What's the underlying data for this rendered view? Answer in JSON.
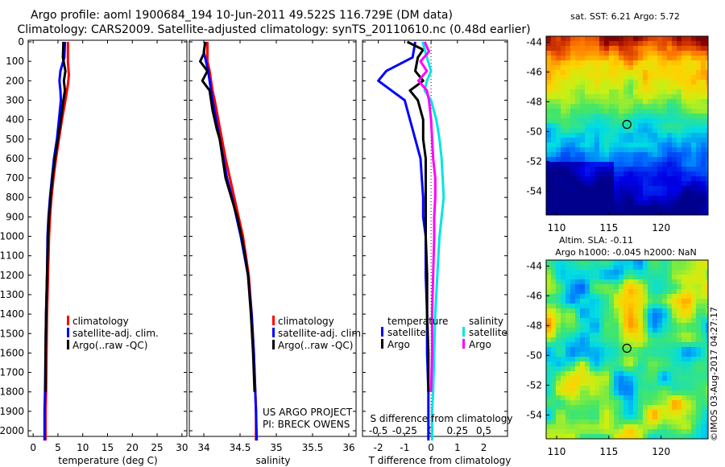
{
  "header": {
    "title_line1": "Argo profile: aoml 1900684_194 10-Jun-2011 49.522S 116.729E (DM data)",
    "title_line2": "Climatology: CARS2009. Satellite-adjusted climatology: synTS_20110610.nc (0.48d earlier)"
  },
  "colors": {
    "climatology": "#ff0000",
    "satellite": "#0000ff",
    "argo": "#000000",
    "salinity_satellite": "#00e5e5",
    "salinity_argo": "#ff00ff"
  },
  "chart_data": [
    {
      "id": "temperature",
      "type": "line",
      "xlabel": "temperature (deg C)",
      "ylim": [
        2050,
        0
      ],
      "xlim": [
        -1,
        31
      ],
      "xticks": [
        0,
        5,
        10,
        15,
        20,
        25,
        30
      ],
      "xtick_labels": [
        "0",
        "5",
        "10",
        "15",
        "20",
        "25",
        "30"
      ],
      "yticks": [
        0,
        100,
        200,
        300,
        400,
        500,
        600,
        700,
        800,
        900,
        1000,
        1100,
        1200,
        1300,
        1400,
        1500,
        1600,
        1700,
        1800,
        1900,
        2000
      ],
      "legend": [
        "climatology",
        "satellite-adj. clim.",
        "Argo(..raw -QC)"
      ],
      "series": [
        {
          "name": "climatology",
          "color": "#ff0000",
          "points": [
            [
              7.0,
              0
            ],
            [
              7.0,
              100
            ],
            [
              7.2,
              170
            ],
            [
              7.0,
              220
            ],
            [
              6.5,
              300
            ],
            [
              5.8,
              400
            ],
            [
              5.2,
              500
            ],
            [
              4.6,
              600
            ],
            [
              4.1,
              700
            ],
            [
              3.7,
              800
            ],
            [
              3.4,
              900
            ],
            [
              3.2,
              1000
            ],
            [
              3.0,
              1200
            ],
            [
              2.8,
              1400
            ],
            [
              2.7,
              1600
            ],
            [
              2.6,
              1800
            ],
            [
              2.5,
              1900
            ],
            [
              2.5,
              2050
            ]
          ]
        },
        {
          "name": "satellite-adj. clim.",
          "color": "#0000ff",
          "points": [
            [
              6.4,
              0
            ],
            [
              6.3,
              80
            ],
            [
              5.5,
              150
            ],
            [
              5.3,
              200
            ],
            [
              5.5,
              250
            ],
            [
              5.6,
              300
            ],
            [
              5.2,
              400
            ],
            [
              4.8,
              500
            ],
            [
              4.2,
              600
            ],
            [
              3.8,
              700
            ],
            [
              3.4,
              800
            ],
            [
              3.1,
              900
            ],
            [
              2.9,
              1000
            ],
            [
              2.8,
              1200
            ],
            [
              2.6,
              1400
            ],
            [
              2.5,
              1600
            ],
            [
              2.4,
              1800
            ],
            [
              2.3,
              1900
            ],
            [
              2.3,
              2050
            ]
          ]
        },
        {
          "name": "Argo(..raw -QC)",
          "color": "#000000",
          "points": [
            [
              6.1,
              0
            ],
            [
              6.0,
              80
            ],
            [
              6.5,
              150
            ],
            [
              6.2,
              200
            ],
            [
              6.4,
              250
            ],
            [
              6.1,
              300
            ],
            [
              5.6,
              400
            ],
            [
              5.0,
              500
            ],
            [
              4.4,
              600
            ],
            [
              3.9,
              700
            ],
            [
              3.5,
              800
            ],
            [
              3.2,
              900
            ],
            [
              3.0,
              1000
            ],
            [
              2.8,
              1200
            ],
            [
              2.6,
              1400
            ],
            [
              2.5,
              1600
            ],
            [
              2.5,
              1800
            ]
          ]
        }
      ]
    },
    {
      "id": "salinity",
      "type": "line",
      "xlabel": "salinity",
      "ylim": [
        2050,
        0
      ],
      "xlim": [
        33.8,
        36.1
      ],
      "xticks": [
        34,
        34.5,
        35,
        35.5,
        36
      ],
      "xtick_labels": [
        "34",
        "34.5",
        "35",
        "35.5",
        "36"
      ],
      "legend": [
        "climatology",
        "satellite-adj. clim.",
        "Argo(..raw -QC)"
      ],
      "series": [
        {
          "name": "climatology",
          "color": "#ff0000",
          "points": [
            [
              34.05,
              0
            ],
            [
              34.05,
              100
            ],
            [
              34.08,
              150
            ],
            [
              34.1,
              200
            ],
            [
              34.12,
              250
            ],
            [
              34.15,
              300
            ],
            [
              34.2,
              400
            ],
            [
              34.25,
              500
            ],
            [
              34.3,
              600
            ],
            [
              34.36,
              700
            ],
            [
              34.42,
              800
            ],
            [
              34.48,
              900
            ],
            [
              34.54,
              1000
            ],
            [
              34.58,
              1100
            ],
            [
              34.62,
              1200
            ],
            [
              34.66,
              1400
            ],
            [
              34.69,
              1600
            ],
            [
              34.71,
              1800
            ],
            [
              34.72,
              1900
            ],
            [
              34.72,
              2050
            ]
          ]
        },
        {
          "name": "satellite-adj. clim.",
          "color": "#0000ff",
          "points": [
            [
              34.02,
              0
            ],
            [
              34.0,
              50
            ],
            [
              34.03,
              100
            ],
            [
              34.06,
              150
            ],
            [
              34.08,
              200
            ],
            [
              34.12,
              300
            ],
            [
              34.17,
              400
            ],
            [
              34.22,
              500
            ],
            [
              34.27,
              600
            ],
            [
              34.32,
              700
            ],
            [
              34.39,
              800
            ],
            [
              34.45,
              900
            ],
            [
              34.51,
              1000
            ],
            [
              34.56,
              1100
            ],
            [
              34.61,
              1200
            ],
            [
              34.66,
              1400
            ],
            [
              34.69,
              1600
            ],
            [
              34.71,
              1800
            ],
            [
              34.72,
              1900
            ],
            [
              34.73,
              2050
            ]
          ]
        },
        {
          "name": "Argo(..raw -QC)",
          "color": "#000000",
          "points": [
            [
              34.02,
              0
            ],
            [
              34.0,
              60
            ],
            [
              33.95,
              100
            ],
            [
              34.05,
              150
            ],
            [
              33.98,
              200
            ],
            [
              34.08,
              250
            ],
            [
              34.1,
              300
            ],
            [
              34.12,
              350
            ],
            [
              34.15,
              400
            ],
            [
              34.18,
              450
            ],
            [
              34.22,
              500
            ],
            [
              34.24,
              550
            ],
            [
              34.26,
              600
            ],
            [
              34.3,
              700
            ],
            [
              34.38,
              800
            ],
            [
              34.46,
              900
            ],
            [
              34.52,
              1000
            ],
            [
              34.57,
              1100
            ],
            [
              34.61,
              1200
            ],
            [
              34.65,
              1400
            ],
            [
              34.68,
              1600
            ],
            [
              34.7,
              1800
            ]
          ]
        }
      ],
      "annotations": [
        "US ARGO PROJECT",
        "PI: BRECK OWENS"
      ]
    },
    {
      "id": "difference",
      "type": "line",
      "xlabel_top": "S difference from climatology",
      "xlabel": "T difference from climatology",
      "ylim": [
        2050,
        0
      ],
      "xlim": [
        -2.6,
        2.9
      ],
      "xticks": [
        -2,
        -1,
        0,
        1,
        2
      ],
      "xtick_labels": [
        "-2",
        "-1",
        "0",
        "1",
        "2"
      ],
      "xticks_top": [
        -0.5,
        -0.25,
        0,
        0.25,
        0.5
      ],
      "xtick_top_labels": [
        "-0.5",
        "-0.25",
        "0",
        "0.25",
        "0.5"
      ],
      "legend_left_title": "temperature",
      "legend_right_title": "salinity",
      "legend_left": [
        "satellite",
        "Argo"
      ],
      "legend_right": [
        "satellite",
        "Argo"
      ],
      "series": [
        {
          "name": "temperature satellite",
          "color": "#0000ff",
          "points": [
            [
              -0.6,
              0
            ],
            [
              -0.7,
              80
            ],
            [
              -1.7,
              150
            ],
            [
              -2.0,
              200
            ],
            [
              -1.5,
              250
            ],
            [
              -1.0,
              300
            ],
            [
              -0.8,
              400
            ],
            [
              -0.6,
              500
            ],
            [
              -0.4,
              600
            ],
            [
              -0.35,
              700
            ],
            [
              -0.3,
              800
            ],
            [
              -0.3,
              900
            ],
            [
              -0.2,
              1000
            ],
            [
              -0.2,
              1200
            ],
            [
              -0.15,
              1400
            ],
            [
              -0.15,
              1600
            ],
            [
              -0.1,
              1800
            ],
            [
              -0.1,
              2050
            ]
          ]
        },
        {
          "name": "temperature Argo",
          "color": "#000000",
          "points": [
            [
              -0.9,
              0
            ],
            [
              -0.3,
              40
            ],
            [
              -0.5,
              80
            ],
            [
              -0.6,
              150
            ],
            [
              -0.3,
              200
            ],
            [
              -0.8,
              250
            ],
            [
              -0.5,
              300
            ],
            [
              -0.3,
              400
            ],
            [
              -0.3,
              500
            ],
            [
              -0.2,
              600
            ],
            [
              -0.2,
              800
            ],
            [
              -0.2,
              1000
            ],
            [
              -0.15,
              1200
            ],
            [
              -0.15,
              1400
            ],
            [
              -0.1,
              1600
            ],
            [
              -0.1,
              1800
            ]
          ]
        },
        {
          "name": "salinity satellite",
          "color": "#00e5e5",
          "points": [
            [
              -0.08,
              0
            ],
            [
              -0.04,
              80
            ],
            [
              0.0,
              150
            ],
            [
              -0.04,
              200
            ],
            [
              -0.06,
              250
            ],
            [
              0.0,
              300
            ],
            [
              0.05,
              400
            ],
            [
              0.08,
              500
            ],
            [
              0.1,
              600
            ],
            [
              0.11,
              700
            ],
            [
              0.12,
              800
            ],
            [
              0.1,
              900
            ],
            [
              0.08,
              1000
            ],
            [
              0.06,
              1200
            ],
            [
              0.04,
              1400
            ],
            [
              0.03,
              1600
            ],
            [
              0.02,
              1800
            ],
            [
              0.01,
              1900
            ],
            [
              0.01,
              2050
            ]
          ]
        },
        {
          "name": "salinity Argo",
          "color": "#ff00ff",
          "points": [
            [
              -0.06,
              0
            ],
            [
              -0.02,
              50
            ],
            [
              -0.1,
              100
            ],
            [
              -0.04,
              150
            ],
            [
              -0.12,
              200
            ],
            [
              -0.04,
              250
            ],
            [
              -0.02,
              300
            ],
            [
              0.0,
              400
            ],
            [
              0.01,
              500
            ],
            [
              0.02,
              600
            ],
            [
              0.04,
              700
            ],
            [
              0.04,
              800
            ],
            [
              0.03,
              900
            ],
            [
              0.03,
              1000
            ],
            [
              0.02,
              1200
            ],
            [
              0.01,
              1400
            ],
            [
              0.01,
              1600
            ],
            [
              0.0,
              1800
            ]
          ]
        }
      ]
    },
    {
      "id": "sst_map",
      "type": "heatmap",
      "title": "sat. SST: 6.21  Argo: 5.72",
      "xlim": [
        109,
        124.5
      ],
      "ylim": [
        -55.6,
        -43.6
      ],
      "xticks": [
        110,
        115,
        120
      ],
      "yticks": [
        -44,
        -46,
        -48,
        -50,
        -52,
        -54
      ],
      "marker": [
        116.73,
        -49.52
      ]
    },
    {
      "id": "sla_map",
      "type": "heatmap",
      "title_line1": "Altim. SLA: -0.11",
      "title_line2": "Argo h1000: -0.045 h2000: NaN",
      "xlim": [
        109,
        124.5
      ],
      "ylim": [
        -55.6,
        -43.6
      ],
      "xticks": [
        110,
        115,
        120
      ],
      "yticks": [
        -44,
        -46,
        -48,
        -50,
        -52,
        -54
      ],
      "marker": [
        116.73,
        -49.52
      ]
    }
  ],
  "credit": "©IMOS 03-Aug-2017 04:27:17"
}
